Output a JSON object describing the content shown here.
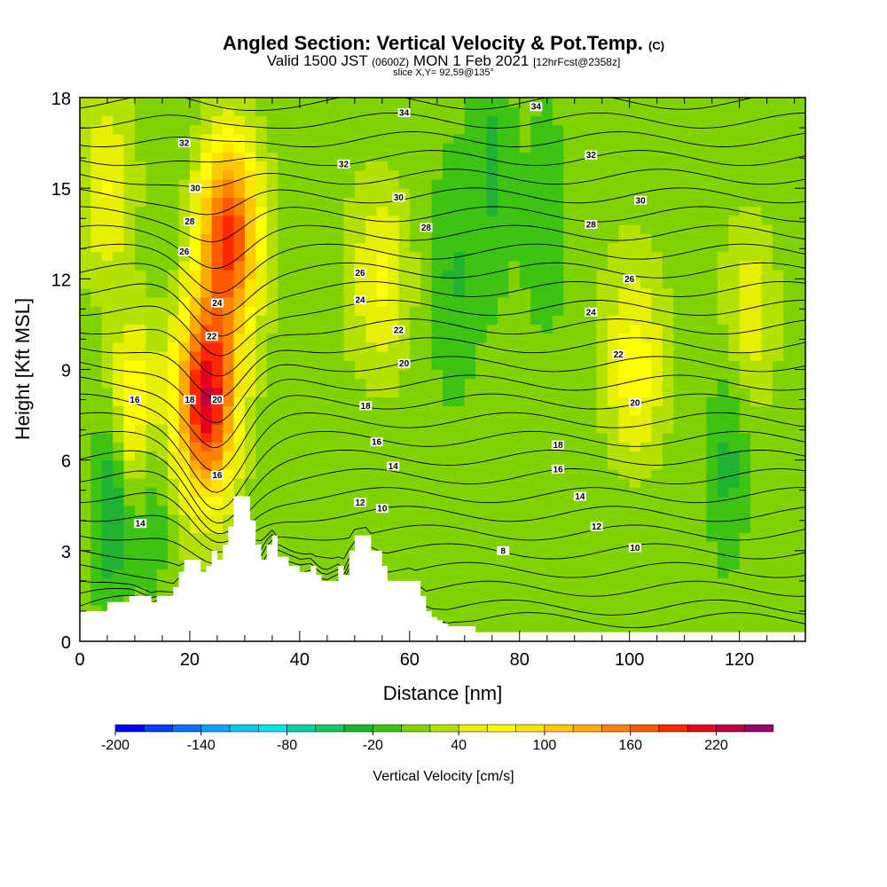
{
  "header": {
    "title_main": "Angled Section: Vertical Velocity & Pot.Temp.",
    "title_mark": "(C)",
    "valid_a": "Valid 1500 JST",
    "valid_b": "(0600Z)",
    "valid_c": "MON 1 Feb 2021",
    "valid_d": "[12hrFcst@2358z]",
    "slice": "slice X,Y= 92,59@135°"
  },
  "chart_data": {
    "type": "heatmap",
    "xlabel": "Distance [nm]",
    "ylabel": "Height [Kft MSL]",
    "xlim": [
      0,
      132
    ],
    "ylim": [
      0,
      18
    ],
    "x_ticks": [
      0,
      20,
      40,
      60,
      80,
      100,
      120
    ],
    "y_ticks": [
      0,
      3,
      6,
      9,
      12,
      15,
      18
    ],
    "fill_variable": "Vertical Velocity [cm/s]",
    "contour_variable": "Potential temperature (C)",
    "colorbar": {
      "label": "Vertical Velocity [cm/s]",
      "tick_labels": [
        -200,
        -140,
        -80,
        -20,
        40,
        100,
        160,
        220
      ],
      "levels": [
        -200,
        -180,
        -160,
        -140,
        -120,
        -100,
        -80,
        -60,
        -40,
        -20,
        0,
        20,
        40,
        60,
        80,
        100,
        120,
        140,
        160,
        180,
        200,
        220,
        240,
        260
      ],
      "colors": [
        "#0000ff",
        "#0a3cff",
        "#0f6eff",
        "#0aa0ff",
        "#00c8f0",
        "#00e6e6",
        "#00d2a0",
        "#14c864",
        "#1eb432",
        "#3cc314",
        "#82d200",
        "#b4e100",
        "#e6f000",
        "#ffff00",
        "#ffe600",
        "#ffc800",
        "#ffaa00",
        "#ff8200",
        "#ff5a00",
        "#ff2800",
        "#e6001e",
        "#be0041",
        "#96006e",
        "#6e0096"
      ]
    },
    "updrafts": [
      {
        "x": 27,
        "y": 13.5,
        "w_max": 175
      },
      {
        "x": 23,
        "y": 8,
        "w_max": 210
      },
      {
        "x": 10,
        "y": 7.5,
        "w_max": 95
      },
      {
        "x": 5,
        "y": 15,
        "w_max": 55
      },
      {
        "x": 55,
        "y": 12,
        "w_max": 55
      },
      {
        "x": 101,
        "y": 9,
        "w_max": 60
      },
      {
        "x": 122,
        "y": 11,
        "w_max": 50
      }
    ],
    "downdrafts": [
      {
        "x": 6,
        "y": 5,
        "w_min": -70
      },
      {
        "x": 13,
        "y": 5.5,
        "w_min": -55
      },
      {
        "x": 75,
        "y": 16,
        "w_min": -30
      },
      {
        "x": 85,
        "y": 14,
        "w_min": -28
      },
      {
        "x": 118,
        "y": 6,
        "w_min": -35
      },
      {
        "x": 68,
        "y": 12,
        "w_min": -25
      }
    ],
    "terrain": {
      "x": [
        0,
        5,
        9,
        10,
        13,
        14,
        17,
        18,
        19,
        21,
        22,
        23,
        24,
        25,
        26,
        27,
        28,
        29,
        31,
        32,
        33,
        34,
        35,
        36,
        38,
        40,
        42,
        43,
        44,
        45,
        47,
        48,
        49,
        50,
        51,
        52,
        53,
        55,
        56,
        57,
        58,
        60,
        62,
        63,
        64,
        65,
        66,
        67,
        68,
        72,
        74,
        132
      ],
      "height": [
        1.0,
        1.3,
        1.5,
        1.5,
        1.3,
        1.5,
        1.8,
        2.3,
        2.7,
        2.7,
        2.3,
        2.5,
        3.0,
        2.7,
        3.2,
        3.8,
        4.8,
        4.8,
        4.0,
        3.2,
        2.7,
        3.2,
        3.5,
        2.8,
        2.5,
        2.3,
        2.5,
        2.2,
        2.0,
        2.0,
        2.5,
        2.2,
        3.0,
        3.5,
        3.5,
        3.5,
        3.0,
        2.5,
        2.0,
        2.0,
        2.0,
        2.0,
        1.5,
        1.0,
        0.8,
        0.7,
        0.6,
        0.5,
        0.5,
        0.3,
        0.3,
        0.3
      ]
    },
    "contour_levels": [
      8,
      10,
      12,
      14,
      16,
      18,
      20,
      22,
      24,
      26,
      28,
      30,
      32,
      34
    ],
    "contour_labels": [
      {
        "text": "34",
        "x": 59,
        "y": 17.5
      },
      {
        "text": "34",
        "x": 83,
        "y": 17.7
      },
      {
        "text": "32",
        "x": 19,
        "y": 16.5
      },
      {
        "text": "32",
        "x": 48,
        "y": 15.8
      },
      {
        "text": "32",
        "x": 93,
        "y": 16.1
      },
      {
        "text": "30",
        "x": 21,
        "y": 15.0
      },
      {
        "text": "30",
        "x": 58,
        "y": 14.7
      },
      {
        "text": "30",
        "x": 102,
        "y": 14.6
      },
      {
        "text": "28",
        "x": 20,
        "y": 13.9
      },
      {
        "text": "28",
        "x": 63,
        "y": 13.7
      },
      {
        "text": "28",
        "x": 93,
        "y": 13.8
      },
      {
        "text": "26",
        "x": 19,
        "y": 12.9
      },
      {
        "text": "26",
        "x": 51,
        "y": 12.2
      },
      {
        "text": "26",
        "x": 100,
        "y": 12.0
      },
      {
        "text": "24",
        "x": 25,
        "y": 11.2
      },
      {
        "text": "24",
        "x": 51,
        "y": 11.3
      },
      {
        "text": "24",
        "x": 93,
        "y": 10.9
      },
      {
        "text": "22",
        "x": 24,
        "y": 10.1
      },
      {
        "text": "22",
        "x": 58,
        "y": 10.3
      },
      {
        "text": "22",
        "x": 98,
        "y": 9.5
      },
      {
        "text": "20",
        "x": 59,
        "y": 9.2
      },
      {
        "text": "20",
        "x": 25,
        "y": 8.0
      },
      {
        "text": "20",
        "x": 101,
        "y": 7.9
      },
      {
        "text": "18",
        "x": 20,
        "y": 8.0
      },
      {
        "text": "18",
        "x": 52,
        "y": 7.8
      },
      {
        "text": "18",
        "x": 87,
        "y": 6.5
      },
      {
        "text": "16",
        "x": 10,
        "y": 8.0
      },
      {
        "text": "16",
        "x": 54,
        "y": 6.6
      },
      {
        "text": "16",
        "x": 87,
        "y": 5.7
      },
      {
        "text": "16",
        "x": 25,
        "y": 5.5
      },
      {
        "text": "14",
        "x": 57,
        "y": 5.8
      },
      {
        "text": "14",
        "x": 91,
        "y": 4.8
      },
      {
        "text": "14",
        "x": 11,
        "y": 3.9
      },
      {
        "text": "12",
        "x": 51,
        "y": 4.6
      },
      {
        "text": "12",
        "x": 94,
        "y": 3.8
      },
      {
        "text": "10",
        "x": 55,
        "y": 4.4
      },
      {
        "text": "10",
        "x": 101,
        "y": 3.1
      },
      {
        "text": "8",
        "x": 77,
        "y": 3.0
      }
    ]
  }
}
